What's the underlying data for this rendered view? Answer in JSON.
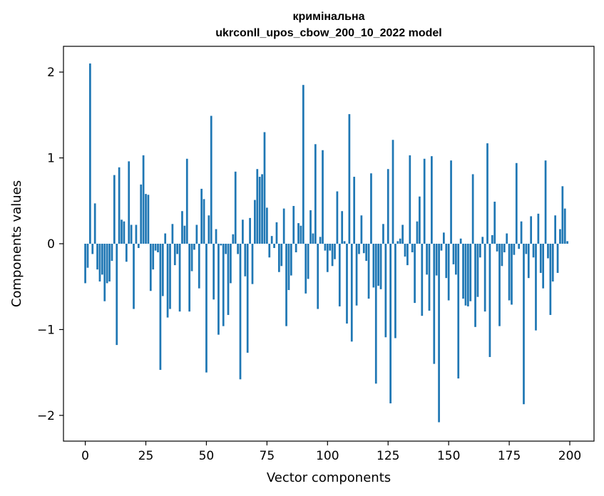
{
  "chart_data": {
    "type": "bar",
    "title": "кримінальна",
    "subtitle": "ukrconll_upos_cbow_200_10_2022 model",
    "xlabel": "Vector components",
    "ylabel": "Components values",
    "xlim": [
      -9,
      210
    ],
    "ylim": [
      -2.3,
      2.3
    ],
    "xticks": [
      0,
      25,
      50,
      75,
      100,
      125,
      150,
      175,
      200
    ],
    "yticks": [
      -2,
      -1,
      0,
      1,
      2
    ],
    "ytick_labels": [
      "−2",
      "−1",
      "0",
      "1",
      "2"
    ],
    "grid": false,
    "bar_color": "#1f77b4",
    "values": [
      -0.46,
      -0.28,
      2.1,
      -0.12,
      0.47,
      -0.3,
      -0.44,
      -0.36,
      -0.67,
      -0.46,
      -0.44,
      -0.2,
      0.8,
      -1.18,
      0.89,
      0.28,
      0.26,
      -0.21,
      0.96,
      0.22,
      -0.76,
      0.22,
      -0.05,
      0.69,
      1.03,
      0.58,
      0.57,
      -0.55,
      -0.3,
      -0.08,
      -0.1,
      -1.47,
      -0.61,
      0.12,
      -0.86,
      -0.76,
      0.23,
      -0.25,
      -0.12,
      -0.79,
      0.38,
      0.21,
      0.99,
      -0.79,
      -0.32,
      -0.07,
      0.22,
      -0.52,
      0.64,
      0.52,
      -1.5,
      0.33,
      1.49,
      -0.65,
      0.17,
      -1.06,
      -0.02,
      -0.96,
      -0.12,
      -0.83,
      -0.46,
      0.11,
      0.84,
      -0.12,
      -1.58,
      0.28,
      -0.38,
      -1.27,
      0.3,
      -0.47,
      0.51,
      0.87,
      0.78,
      0.81,
      1.3,
      0.42,
      -0.16,
      0.09,
      -0.05,
      0.25,
      -0.33,
      -0.26,
      0.41,
      -0.96,
      -0.54,
      -0.37,
      0.44,
      -0.1,
      0.24,
      0.21,
      1.85,
      -0.58,
      -0.41,
      0.39,
      0.12,
      1.16,
      -0.76,
      0.08,
      1.09,
      -0.08,
      -0.33,
      -0.08,
      -0.26,
      -0.18,
      0.61,
      -0.73,
      0.38,
      0.03,
      -0.93,
      1.51,
      -1.14,
      0.78,
      -0.72,
      -0.12,
      0.33,
      -0.11,
      -0.2,
      -0.64,
      0.82,
      -0.51,
      -1.63,
      -0.49,
      -0.53,
      0.23,
      -1.09,
      0.87,
      -1.86,
      1.21,
      -1.1,
      0.03,
      0.06,
      0.22,
      -0.15,
      -0.25,
      1.03,
      -0.1,
      -0.69,
      0.26,
      0.55,
      -0.84,
      0.99,
      -0.36,
      -0.78,
      1.02,
      -1.4,
      -0.37,
      -2.08,
      -0.08,
      0.13,
      -0.4,
      -0.66,
      0.97,
      -0.24,
      -0.36,
      -1.57,
      0.06,
      -0.64,
      -0.72,
      -0.73,
      -0.67,
      0.81,
      -0.97,
      -0.62,
      -0.16,
      0.08,
      -0.79,
      1.17,
      -1.32,
      0.1,
      0.49,
      -0.09,
      -0.96,
      -0.26,
      -0.1,
      0.12,
      -0.66,
      -0.71,
      -0.13,
      0.94,
      -0.06,
      0.26,
      -1.87,
      -0.12,
      -0.4,
      0.32,
      -0.16,
      -1.01,
      0.35,
      -0.34,
      -0.52,
      0.97,
      -0.17,
      -0.83,
      -0.44,
      0.33,
      -0.34,
      0.17,
      0.67,
      0.41,
      0.03
    ]
  }
}
